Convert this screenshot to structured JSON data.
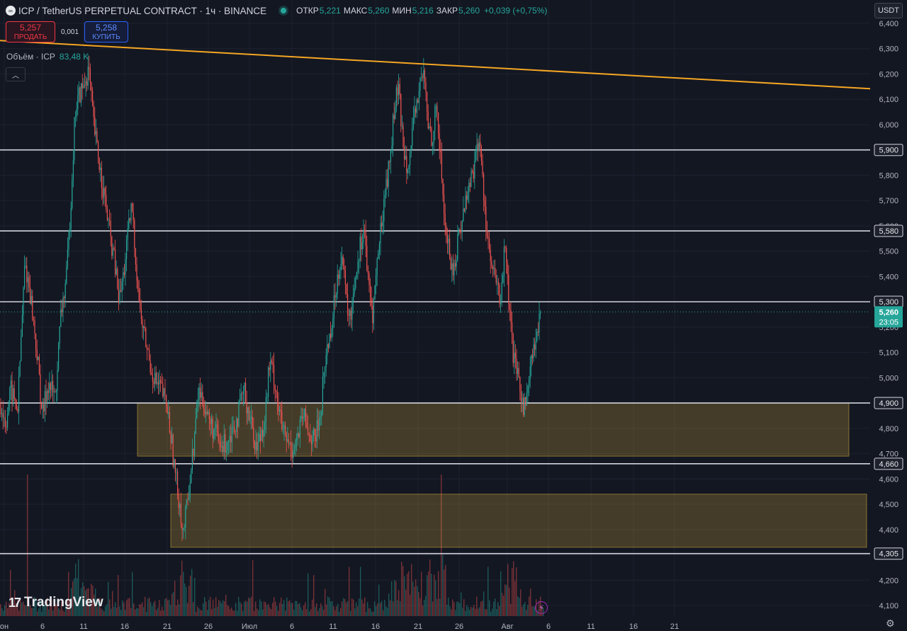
{
  "header": {
    "symbol_title": "ICP / TetherUS PERPETUAL CONTRACT · 1ч · BINANCE",
    "open_label": "ОТКР",
    "open_value": "5,221",
    "high_label": "МАКС",
    "high_value": "5,260",
    "low_label": "МИН",
    "low_value": "5,216",
    "close_label": "ЗАКР",
    "close_value": "5,260",
    "change": "+0,039 (+0,75%)"
  },
  "trade": {
    "sell_price": "5,257",
    "sell_label": "ПРОДАТЬ",
    "spread": "0,001",
    "buy_price": "5,258",
    "buy_label": "КУПИТЬ"
  },
  "volume_indicator": {
    "label": "Объём · ICP",
    "value": "83,48 K"
  },
  "currency_button": "USDT",
  "collapse_icon": "chevron-up-icon",
  "branding": "TradingView",
  "colors": {
    "up": "#26a69a",
    "down": "#ef5350",
    "trendline": "#f5a623",
    "level": "#d1d4dc",
    "zone": "#f5c542",
    "background": "#131722"
  },
  "chart_data": {
    "type": "candlestick",
    "ylim": [
      4.06,
      6.42
    ],
    "y_ticks": [
      "6,400",
      "6,300",
      "6,200",
      "6,100",
      "6,000",
      "5,900",
      "5,800",
      "5,700",
      "5,600",
      "5,500",
      "5,400",
      "5,300",
      "5,200",
      "5,100",
      "5,000",
      "4,900",
      "4,800",
      "4,700",
      "4,600",
      "4,500",
      "4,400",
      "4,300",
      "4,200",
      "4,100"
    ],
    "x_ticks": [
      "он",
      "6",
      "11",
      "16",
      "21",
      "26",
      "Июл",
      "6",
      "11",
      "16",
      "21",
      "26",
      "Авг",
      "6",
      "11",
      "16",
      "21"
    ],
    "horizontal_levels": [
      {
        "value": 5.9,
        "label": "5,900"
      },
      {
        "value": 5.58,
        "label": "5,580"
      },
      {
        "value": 5.3,
        "label": "5,300"
      },
      {
        "value": 4.9,
        "label": "4,900"
      },
      {
        "value": 4.66,
        "label": "4,660"
      },
      {
        "value": 4.305,
        "label": "4,305"
      }
    ],
    "zones": [
      {
        "from": 4.69,
        "to": 4.9
      },
      {
        "from": 4.33,
        "to": 4.54
      }
    ],
    "trendline": {
      "from": 6.332,
      "to": 6.142
    },
    "last_price": {
      "value": 5.26,
      "label": "5,260",
      "countdown": "23:05"
    },
    "price_path": [
      [
        0,
        4.9
      ],
      [
        8,
        4.82
      ],
      [
        15,
        4.95
      ],
      [
        25,
        4.88
      ],
      [
        35,
        5.45
      ],
      [
        42,
        5.35
      ],
      [
        52,
        5.1
      ],
      [
        60,
        4.85
      ],
      [
        68,
        4.98
      ],
      [
        78,
        4.92
      ],
      [
        86,
        5.25
      ],
      [
        94,
        5.4
      ],
      [
        100,
        5.7
      ],
      [
        106,
        6.05
      ],
      [
        112,
        6.12
      ],
      [
        118,
        6.15
      ],
      [
        125,
        6.22
      ],
      [
        132,
        6.0
      ],
      [
        140,
        5.85
      ],
      [
        148,
        5.7
      ],
      [
        156,
        5.55
      ],
      [
        162,
        5.45
      ],
      [
        168,
        5.3
      ],
      [
        174,
        5.4
      ],
      [
        180,
        5.55
      ],
      [
        186,
        5.68
      ],
      [
        192,
        5.45
      ],
      [
        198,
        5.25
      ],
      [
        205,
        5.15
      ],
      [
        212,
        5.05
      ],
      [
        220,
        4.98
      ],
      [
        228,
        4.95
      ],
      [
        236,
        4.88
      ],
      [
        242,
        4.75
      ],
      [
        248,
        4.6
      ],
      [
        254,
        4.5
      ],
      [
        258,
        4.38
      ],
      [
        262,
        4.45
      ],
      [
        268,
        4.6
      ],
      [
        274,
        4.75
      ],
      [
        280,
        4.95
      ],
      [
        288,
        4.9
      ],
      [
        296,
        4.82
      ],
      [
        304,
        4.78
      ],
      [
        312,
        4.72
      ],
      [
        320,
        4.75
      ],
      [
        328,
        4.8
      ],
      [
        336,
        4.85
      ],
      [
        344,
        4.95
      ],
      [
        350,
        4.88
      ],
      [
        356,
        4.8
      ],
      [
        362,
        4.72
      ],
      [
        368,
        4.78
      ],
      [
        374,
        4.85
      ],
      [
        380,
        5.05
      ],
      [
        386,
        5.02
      ],
      [
        392,
        4.9
      ],
      [
        398,
        4.8
      ],
      [
        404,
        4.75
      ],
      [
        412,
        4.72
      ],
      [
        420,
        4.76
      ],
      [
        428,
        4.85
      ],
      [
        436,
        4.78
      ],
      [
        444,
        4.75
      ],
      [
        452,
        4.85
      ],
      [
        458,
        5.05
      ],
      [
        464,
        5.15
      ],
      [
        470,
        5.25
      ],
      [
        476,
        5.4
      ],
      [
        482,
        5.5
      ],
      [
        488,
        5.32
      ],
      [
        494,
        5.22
      ],
      [
        500,
        5.38
      ],
      [
        508,
        5.52
      ],
      [
        514,
        5.6
      ],
      [
        520,
        5.35
      ],
      [
        526,
        5.25
      ],
      [
        532,
        5.45
      ],
      [
        538,
        5.6
      ],
      [
        544,
        5.75
      ],
      [
        550,
        5.85
      ],
      [
        556,
        6.05
      ],
      [
        562,
        6.15
      ],
      [
        568,
        5.95
      ],
      [
        574,
        5.85
      ],
      [
        580,
        5.9
      ],
      [
        586,
        6.05
      ],
      [
        592,
        6.15
      ],
      [
        598,
        6.2
      ],
      [
        604,
        6.0
      ],
      [
        610,
        5.95
      ],
      [
        616,
        6.08
      ],
      [
        622,
        5.85
      ],
      [
        628,
        5.6
      ],
      [
        634,
        5.5
      ],
      [
        640,
        5.4
      ],
      [
        646,
        5.55
      ],
      [
        652,
        5.62
      ],
      [
        658,
        5.72
      ],
      [
        664,
        5.78
      ],
      [
        670,
        5.85
      ],
      [
        676,
        5.95
      ],
      [
        682,
        5.75
      ],
      [
        688,
        5.55
      ],
      [
        694,
        5.42
      ],
      [
        700,
        5.38
      ],
      [
        706,
        5.3
      ],
      [
        712,
        5.5
      ],
      [
        716,
        5.4
      ],
      [
        720,
        5.2
      ],
      [
        726,
        5.05
      ],
      [
        732,
        4.98
      ],
      [
        738,
        4.9
      ],
      [
        742,
        4.88
      ],
      [
        746,
        5.02
      ],
      [
        752,
        5.1
      ],
      [
        758,
        5.16
      ],
      [
        764,
        5.26
      ]
    ]
  }
}
